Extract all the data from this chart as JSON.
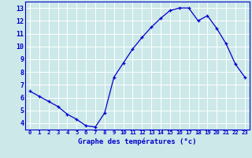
{
  "hours": [
    0,
    1,
    2,
    3,
    4,
    5,
    6,
    7,
    8,
    9,
    10,
    11,
    12,
    13,
    14,
    15,
    16,
    17,
    18,
    19,
    20,
    21,
    22,
    23
  ],
  "temps": [
    6.5,
    6.1,
    5.7,
    5.3,
    4.7,
    4.3,
    3.8,
    3.7,
    4.8,
    7.6,
    8.7,
    9.8,
    10.7,
    11.5,
    12.2,
    12.8,
    13.0,
    13.0,
    12.0,
    12.4,
    11.4,
    10.2,
    8.6,
    7.6
  ],
  "line_color": "#0000cc",
  "marker": "+",
  "bg_color": "#cce8e8",
  "grid_color": "#ffffff",
  "tick_label_color": "#0000cc",
  "xlabel": "Graphe des températures (°c)",
  "xlim": [
    -0.5,
    23.5
  ],
  "ylim": [
    3.5,
    13.5
  ],
  "yticks": [
    4,
    5,
    6,
    7,
    8,
    9,
    10,
    11,
    12,
    13
  ],
  "xticks": [
    0,
    1,
    2,
    3,
    4,
    5,
    6,
    7,
    8,
    9,
    10,
    11,
    12,
    13,
    14,
    15,
    16,
    17,
    18,
    19,
    20,
    21,
    22,
    23
  ],
  "xtick_labels": [
    "0",
    "1",
    "2",
    "3",
    "4",
    "5",
    "6",
    "7",
    "8",
    "9",
    "10",
    "11",
    "12",
    "13",
    "14",
    "15",
    "16",
    "17",
    "18",
    "19",
    "20",
    "21",
    "22",
    "23"
  ],
  "xlabel_color": "#0000cc",
  "spine_color": "#0000cc",
  "fig_width": 3.2,
  "fig_height": 2.0,
  "dpi": 100
}
